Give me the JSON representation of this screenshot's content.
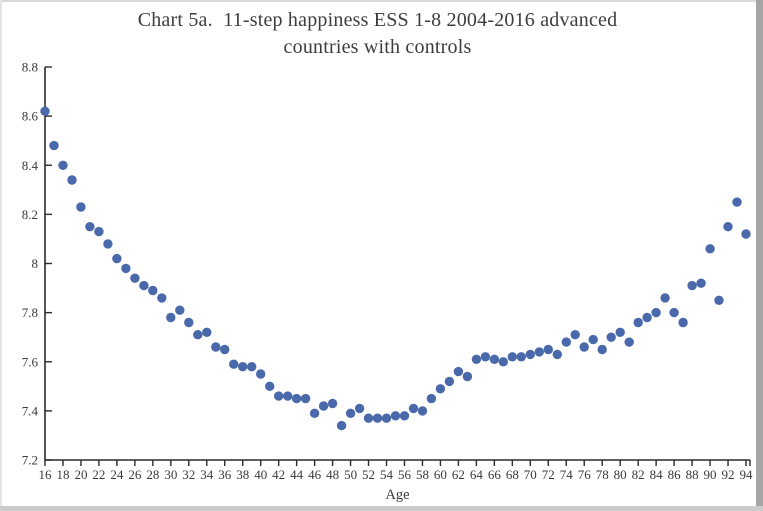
{
  "window": {
    "background": "#ffffff"
  },
  "chart_data": {
    "type": "scatter",
    "title": "Chart 5a.  11-step happiness ESS 1-8 2004-2016 advanced countries with controls",
    "title_lines": [
      "Chart 5a.  11-step happiness ESS 1-8 2004-2016 advanced",
      "countries with controls"
    ],
    "xlabel": "Age",
    "ylabel": "",
    "xlim": [
      16,
      94
    ],
    "ylim": [
      7.2,
      8.8
    ],
    "grid": false,
    "legend_position": "none",
    "marker_color": "#4a69aa",
    "axis_color": "#2b2b2b",
    "text_color": "#3a3a3a",
    "y_tick_labels": [
      "8.8",
      "8.6",
      "8.4",
      "8.2",
      "8",
      "7.8",
      "7.6",
      "7.4",
      "7.2"
    ],
    "y_ticks": [
      8.8,
      8.6,
      8.4,
      8.2,
      8.0,
      7.8,
      7.6,
      7.4,
      7.2
    ],
    "x_ticks": [
      16,
      18,
      20,
      22,
      24,
      26,
      28,
      30,
      32,
      34,
      36,
      38,
      40,
      42,
      44,
      46,
      48,
      50,
      52,
      54,
      56,
      58,
      60,
      62,
      64,
      66,
      68,
      70,
      72,
      74,
      76,
      78,
      80,
      82,
      84,
      86,
      88,
      90,
      92,
      94
    ],
    "x": [
      16,
      17,
      18,
      19,
      20,
      21,
      22,
      23,
      24,
      25,
      26,
      27,
      28,
      29,
      30,
      31,
      32,
      33,
      34,
      35,
      36,
      37,
      38,
      39,
      40,
      41,
      42,
      43,
      44,
      45,
      46,
      47,
      48,
      49,
      50,
      51,
      52,
      53,
      54,
      55,
      56,
      57,
      58,
      59,
      60,
      61,
      62,
      63,
      64,
      65,
      66,
      67,
      68,
      69,
      70,
      71,
      72,
      73,
      74,
      75,
      76,
      77,
      78,
      79,
      80,
      81,
      82,
      83,
      84,
      85,
      86,
      87,
      88,
      89,
      90,
      91,
      92,
      93,
      94
    ],
    "values": [
      8.62,
      8.48,
      8.4,
      8.34,
      8.23,
      8.15,
      8.13,
      8.08,
      8.02,
      7.98,
      7.94,
      7.91,
      7.89,
      7.86,
      7.78,
      7.81,
      7.76,
      7.71,
      7.72,
      7.66,
      7.65,
      7.59,
      7.58,
      7.58,
      7.55,
      7.5,
      7.46,
      7.46,
      7.45,
      7.45,
      7.39,
      7.42,
      7.43,
      7.34,
      7.39,
      7.41,
      7.37,
      7.37,
      7.37,
      7.38,
      7.38,
      7.41,
      7.4,
      7.45,
      7.49,
      7.52,
      7.56,
      7.54,
      7.61,
      7.62,
      7.61,
      7.6,
      7.62,
      7.62,
      7.63,
      7.64,
      7.65,
      7.63,
      7.68,
      7.71,
      7.66,
      7.69,
      7.65,
      7.7,
      7.72,
      7.68,
      7.76,
      7.78,
      7.8,
      7.86,
      7.8,
      7.76,
      7.91,
      7.92,
      8.06,
      7.85,
      8.15,
      8.25,
      8.12
    ]
  }
}
